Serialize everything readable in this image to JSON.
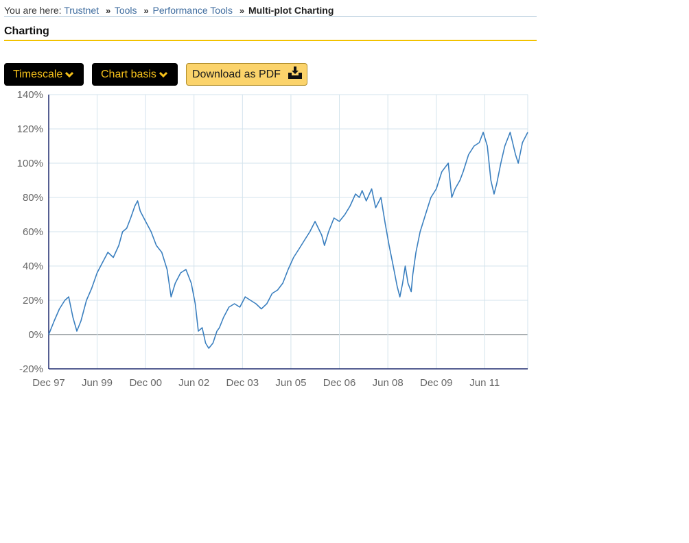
{
  "breadcrumb": {
    "prefix": "You are here:",
    "items": [
      "Trustnet",
      "Tools",
      "Performance Tools"
    ],
    "separator": "»",
    "current": "Multi-plot Charting"
  },
  "section": {
    "title": "Charting"
  },
  "toolbar": {
    "timescale_label": "Timescale",
    "chart_basis_label": "Chart basis",
    "download_label": "Download as PDF",
    "chevron_icon": "chevron-down-icon",
    "download_icon": "download-tray-icon"
  },
  "colors": {
    "accent_yellow": "#f2c200",
    "button_dark": "#000000",
    "button_dark_text": "#f7c21b",
    "button_light": "#fbd36b",
    "series_line": "#3a7fbf",
    "grid": "#d3e3ec",
    "axis": "#1f2a6e"
  },
  "chart_data": {
    "type": "line",
    "title": "",
    "xlabel": "",
    "ylabel": "",
    "ylim": [
      -20,
      140
    ],
    "y_ticks": [
      140,
      120,
      100,
      80,
      60,
      40,
      20,
      0,
      -20
    ],
    "y_tick_labels": [
      "140%",
      "120%",
      "100%",
      "80%",
      "60%",
      "40%",
      "20%",
      "0%",
      "-20%"
    ],
    "x_range": [
      "1997-12-01",
      "2012-09-30"
    ],
    "x_ticks": [
      "1997-12-01",
      "1999-06-01",
      "2000-12-01",
      "2002-06-01",
      "2003-12-01",
      "2005-06-01",
      "2006-12-01",
      "2008-06-01",
      "2009-12-01",
      "2011-06-01"
    ],
    "x_tick_labels": [
      "Dec 97",
      "Jun 99",
      "Dec 00",
      "Jun 02",
      "Dec 03",
      "Jun 05",
      "Dec 06",
      "Jun 08",
      "Dec 09",
      "Jun 11"
    ],
    "grid": true,
    "legend": "none",
    "series": [
      {
        "x": [
          "1997-12-01",
          "1998-02-01",
          "1998-04-01",
          "1998-06-01",
          "1998-07-15",
          "1998-09-01",
          "1998-10-15",
          "1998-12-01",
          "1999-02-01",
          "1999-04-01",
          "1999-06-01",
          "1999-08-01",
          "1999-10-01",
          "1999-12-01",
          "2000-02-01",
          "2000-03-15",
          "2000-05-01",
          "2000-06-15",
          "2000-08-01",
          "2000-09-01",
          "2000-10-01",
          "2000-12-01",
          "2001-02-01",
          "2001-04-01",
          "2001-06-01",
          "2001-08-01",
          "2001-09-15",
          "2001-11-01",
          "2002-01-01",
          "2002-03-01",
          "2002-05-01",
          "2002-06-15",
          "2002-07-20",
          "2002-09-01",
          "2002-10-10",
          "2002-11-15",
          "2003-01-01",
          "2003-02-15",
          "2003-03-15",
          "2003-05-01",
          "2003-07-01",
          "2003-09-01",
          "2003-11-01",
          "2004-01-01",
          "2004-03-01",
          "2004-05-01",
          "2004-07-01",
          "2004-09-01",
          "2004-11-01",
          "2005-01-01",
          "2005-03-01",
          "2005-05-01",
          "2005-07-01",
          "2005-09-01",
          "2005-11-01",
          "2006-01-01",
          "2006-03-01",
          "2006-05-15",
          "2006-06-15",
          "2006-08-01",
          "2006-10-01",
          "2006-12-01",
          "2007-02-01",
          "2007-04-01",
          "2007-06-01",
          "2007-07-15",
          "2007-08-15",
          "2007-10-01",
          "2007-12-01",
          "2008-01-15",
          "2008-03-15",
          "2008-05-01",
          "2008-06-15",
          "2008-08-01",
          "2008-09-15",
          "2008-10-15",
          "2008-11-15",
          "2008-12-15",
          "2009-01-15",
          "2009-02-20",
          "2009-03-10",
          "2009-04-15",
          "2009-06-01",
          "2009-08-01",
          "2009-10-01",
          "2009-12-01",
          "2010-02-01",
          "2010-04-15",
          "2010-05-25",
          "2010-07-01",
          "2010-08-25",
          "2010-10-01",
          "2010-12-01",
          "2011-02-01",
          "2011-04-01",
          "2011-05-15",
          "2011-07-01",
          "2011-08-10",
          "2011-09-15",
          "2011-10-15",
          "2011-12-01",
          "2012-01-15",
          "2012-03-15",
          "2012-05-15",
          "2012-06-15",
          "2012-08-01",
          "2012-09-30"
        ],
        "values": [
          0,
          8,
          15,
          20,
          22,
          10,
          2,
          8,
          20,
          27,
          36,
          42,
          48,
          45,
          52,
          60,
          62,
          68,
          75,
          78,
          72,
          66,
          60,
          52,
          48,
          38,
          22,
          30,
          36,
          38,
          30,
          18,
          2,
          4,
          -5,
          -8,
          -5,
          2,
          4,
          10,
          16,
          18,
          16,
          22,
          20,
          18,
          15,
          18,
          24,
          26,
          30,
          38,
          45,
          50,
          55,
          60,
          66,
          58,
          52,
          60,
          68,
          66,
          70,
          75,
          82,
          80,
          84,
          78,
          85,
          74,
          80,
          65,
          52,
          40,
          28,
          22,
          30,
          40,
          30,
          25,
          35,
          48,
          60,
          70,
          80,
          85,
          95,
          100,
          80,
          85,
          90,
          95,
          105,
          110,
          112,
          118,
          110,
          90,
          82,
          88,
          100,
          110,
          118,
          105,
          100,
          112,
          118
        ]
      }
    ]
  }
}
